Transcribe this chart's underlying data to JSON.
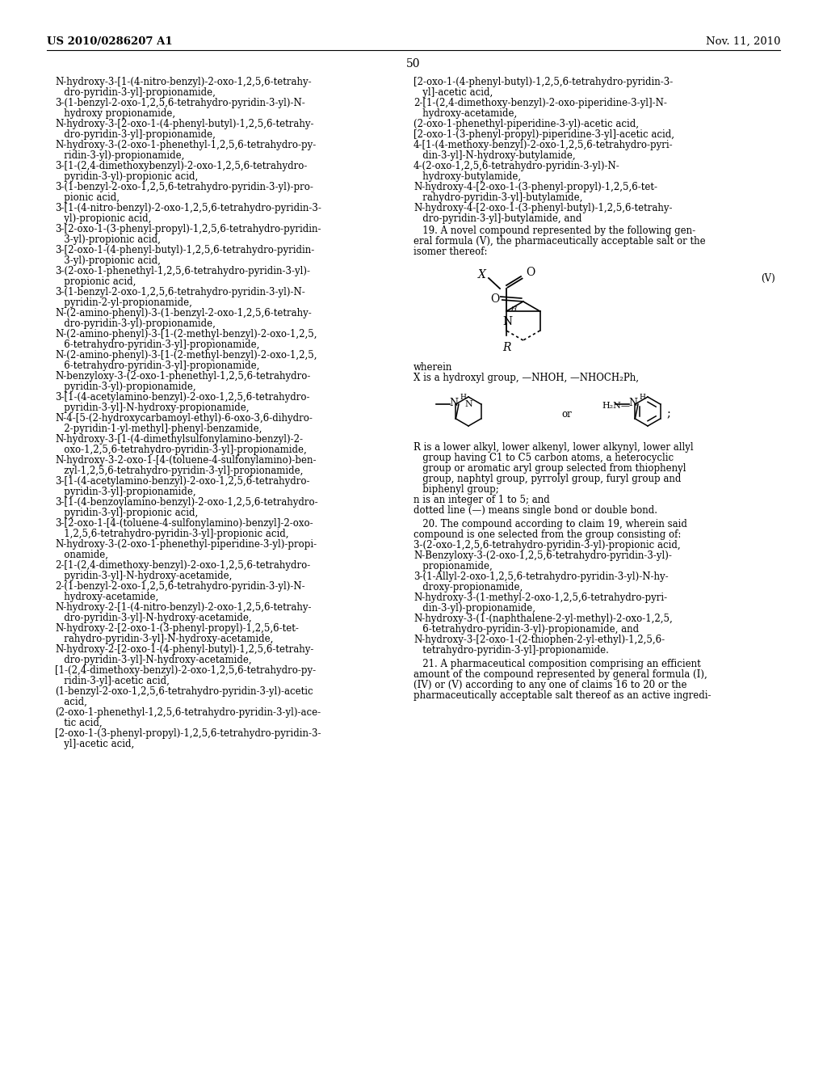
{
  "header_left": "US 2010/0286207 A1",
  "header_right": "Nov. 11, 2010",
  "page_number": "50",
  "background_color": "#ffffff",
  "text_color": "#000000",
  "left_column_text": [
    "N-hydroxy-3-[1-(4-nitro-benzyl)-2-oxo-1,2,5,6-tetrahy-",
    "   dro-pyridin-3-yl]-propionamide,",
    "3-(1-benzyl-2-oxo-1,2,5,6-tetrahydro-pyridin-3-yl)-N-",
    "   hydroxy propionamide,",
    "N-hydroxy-3-[2-oxo-1-(4-phenyl-butyl)-1,2,5,6-tetrahy-",
    "   dro-pyridin-3-yl]-propionamide,",
    "N-hydroxy-3-(2-oxo-1-phenethyl-1,2,5,6-tetrahydro-py-",
    "   ridin-3-yl)-propionamide,",
    "3-[1-(2,4-dimethoxybenzyl)-2-oxo-1,2,5,6-tetrahydro-",
    "   pyridin-3-yl)-propionic acid,",
    "3-(1-benzyl-2-oxo-1,2,5,6-tetrahydro-pyridin-3-yl)-pro-",
    "   pionic acid,",
    "3-[1-(4-nitro-benzyl)-2-oxo-1,2,5,6-tetrahydro-pyridin-3-",
    "   yl)-propionic acid,",
    "3-[2-oxo-1-(3-phenyl-propyl)-1,2,5,6-tetrahydro-pyridin-",
    "   3-yl)-propionic acid,",
    "3-[2-oxo-1-(4-phenyl-butyl)-1,2,5,6-tetrahydro-pyridin-",
    "   3-yl)-propionic acid,",
    "3-(2-oxo-1-phenethyl-1,2,5,6-tetrahydro-pyridin-3-yl)-",
    "   propionic acid,",
    "3-(1-benzyl-2-oxo-1,2,5,6-tetrahydro-pyridin-3-yl)-N-",
    "   pyridin-2-yl-propionamide,",
    "N-(2-amino-phenyl)-3-(1-benzyl-2-oxo-1,2,5,6-tetrahy-",
    "   dro-pyridin-3-yl)-propionamide,",
    "N-(2-amino-phenyl)-3-[1-(2-methyl-benzyl)-2-oxo-1,2,5,",
    "   6-tetrahydro-pyridin-3-yl]-propionamide,",
    "N-(2-amino-phenyl)-3-[1-(2-methyl-benzyl)-2-oxo-1,2,5,",
    "   6-tetrahydro-pyridin-3-yl]-propionamide,",
    "N-benzyloxy-3-(2-oxo-1-phenethyl-1,2,5,6-tetrahydro-",
    "   pyridin-3-yl)-propionamide,",
    "3-[1-(4-acetylamino-benzyl)-2-oxo-1,2,5,6-tetrahydro-",
    "   pyridin-3-yl]-N-hydroxy-propionamide,",
    "N-4-[5-(2-hydroxycarbamoyl-ethyl)-6-oxo-3,6-dihydro-",
    "   2-pyridin-1-yl-methyl]-phenyl-benzamide,",
    "N-hydroxy-3-[1-(4-dimethylsulfonylamino-benzyl)-2-",
    "   oxo-1,2,5,6-tetrahydro-pyridin-3-yl]-propionamide,",
    "N-hydroxy-3-2-oxo-1-[4-(toluene-4-sulfonylamino)-ben-",
    "   zyl-1,2,5,6-tetrahydro-pyridin-3-yl]-propionamide,",
    "3-[1-(4-acetylamino-benzyl)-2-oxo-1,2,5,6-tetrahydro-",
    "   pyridin-3-yl]-propionamide,",
    "3-[1-(4-benzoylamino-benzyl)-2-oxo-1,2,5,6-tetrahydro-",
    "   pyridin-3-yl]-propionic acid,",
    "3-[2-oxo-1-[4-(toluene-4-sulfonylamino)-benzyl]-2-oxo-",
    "   1,2,5,6-tetrahydro-pyridin-3-yl]-propionic acid,",
    "N-hydroxy-3-(2-oxo-1-phenethyl-piperidine-3-yl)-propi-",
    "   onamide,",
    "2-[1-(2,4-dimethoxy-benzyl)-2-oxo-1,2,5,6-tetrahydro-",
    "   pyridin-3-yl]-N-hydroxy-acetamide,",
    "2-(1-benzyl-2-oxo-1,2,5,6-tetrahydro-pyridin-3-yl)-N-",
    "   hydroxy-acetamide,",
    "N-hydroxy-2-[1-(4-nitro-benzyl)-2-oxo-1,2,5,6-tetrahy-",
    "   dro-pyridin-3-yl]-N-hydroxy-acetamide,",
    "N-hydroxy-2-[2-oxo-1-(3-phenyl-propyl)-1,2,5,6-tet-",
    "   rahydro-pyridin-3-yl]-N-hydroxy-acetamide,",
    "N-hydroxy-2-[2-oxo-1-(4-phenyl-butyl)-1,2,5,6-tetrahy-",
    "   dro-pyridin-3-yl]-N-hydroxy-acetamide,",
    "[1-(2,4-dimethoxy-benzyl)-2-oxo-1,2,5,6-tetrahydro-py-",
    "   ridin-3-yl]-acetic acid,",
    "(1-benzyl-2-oxo-1,2,5,6-tetrahydro-pyridin-3-yl)-acetic",
    "   acid,",
    "(2-oxo-1-phenethyl-1,2,5,6-tetrahydro-pyridin-3-yl)-ace-",
    "   tic acid,",
    "[2-oxo-1-(3-phenyl-propyl)-1,2,5,6-tetrahydro-pyridin-3-",
    "   yl]-acetic acid,"
  ],
  "right_col1_text": [
    "[2-oxo-1-(4-phenyl-butyl)-1,2,5,6-tetrahydro-pyridin-3-",
    "   yl]-acetic acid,",
    "2-[1-(2,4-dimethoxy-benzyl)-2-oxo-piperidine-3-yl]-N-",
    "   hydroxy-acetamide,",
    "(2-oxo-1-phenethyl-piperidine-3-yl)-acetic acid,",
    "[2-oxo-1-(3-phenyl-propyl)-piperidine-3-yl]-acetic acid,",
    "4-[1-(4-methoxy-benzyl)-2-oxo-1,2,5,6-tetrahydro-pyri-",
    "   din-3-yl]-N-hydroxy-butylamide,",
    "4-(2-oxo-1,2,5,6-tetrahydro-pyridin-3-yl)-N-",
    "   hydroxy-butylamide,",
    "N-hydroxy-4-[2-oxo-1-(3-phenyl-propyl)-1,2,5,6-tet-",
    "   rahydro-pyridin-3-yl]-butylamide,",
    "N-hydroxy-4-[2-oxo-1-(3-phenyl-butyl)-1,2,5,6-tetrahy-",
    "   dro-pyridin-3-yl]-butylamide, and"
  ],
  "claim19_header": "   19. A novel compound represented by the following gen-",
  "claim19_line2": "eral formula (V), the pharmaceutically acceptable salt or the",
  "claim19_line3": "isomer thereof:",
  "formula_V_label": "(V)",
  "wherein_text": "wherein",
  "X_def_text": "X is a hydroxyl group, —NHOH, —NHOCH₂Ph,",
  "or_text": "or",
  "semicolon": ";",
  "R_def_text": [
    "R is a lower alkyl, lower alkenyl, lower alkynyl, lower allyl",
    "   group having C1 to C5 carbon atoms, a heterocyclic",
    "   group or aromatic aryl group selected from thiophenyl",
    "   group, naphtyl group, pyrrolyl group, furyl group and",
    "   biphenyl group;",
    "n is an integer of 1 to 5; and",
    "dotted line (—) means single bond or double bond."
  ],
  "claim20_line1": "   20. The compound according to claim 19, wherein said",
  "claim20_line2": "compound is one selected from the group consisting of:",
  "claim20_list": [
    "3-(2-oxo-1,2,5,6-tetrahydro-pyridin-3-yl)-propionic acid,",
    "N-Benzyloxy-3-(2-oxo-1,2,5,6-tetrahydro-pyridin-3-yl)-",
    "   propionamide,",
    "3-(1-Allyl-2-oxo-1,2,5,6-tetrahydro-pyridin-3-yl)-N-hy-",
    "   droxy-propionamide,",
    "N-hydroxy-3-(1-methyl-2-oxo-1,2,5,6-tetrahydro-pyri-",
    "   din-3-yl)-propionamide,",
    "N-hydroxy-3-(1-(naphthalene-2-yl-methyl)-2-oxo-1,2,5,",
    "   6-tetrahydro-pyridin-3-yl)-propionamide, and",
    "N-hydroxy-3-[2-oxo-1-(2-thiophen-2-yl-ethyl)-1,2,5,6-",
    "   tetrahydro-pyridin-3-yl]-propionamide."
  ],
  "claim21_line1": "   21. A pharmaceutical composition comprising an efficient",
  "claim21_line2": "amount of the compound represented by general formula (I),",
  "claim21_line3": "(IV) or (V) according to any one of claims 16 to 20 or the",
  "claim21_line4": "pharmaceutically acceptable salt thereof as an active ingredi-"
}
